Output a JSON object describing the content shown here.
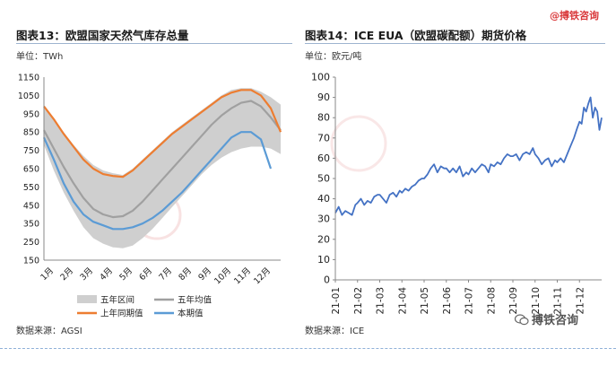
{
  "header": {
    "brand": "@搏铁咨询"
  },
  "footer": {
    "brand": "搏铁咨询"
  },
  "colors": {
    "band": "#cfcfcf",
    "avg": "#a0a0a0",
    "last_year": "#ed7d31",
    "this_year": "#5b9bd5",
    "eua": "#4472c4",
    "accent_red": "#d9383a"
  },
  "icons": {
    "wechat": "wechat-icon",
    "watermark": "boshi-logo-icon"
  },
  "chart_data": [
    {
      "type": "area",
      "title": "图表13：欧盟国家天然气库存总量",
      "unit_label": "单位：TWh",
      "source": "数据来源：AGSI",
      "ylim": [
        150,
        1150
      ],
      "yticks": [
        150,
        250,
        350,
        450,
        550,
        650,
        750,
        850,
        950,
        1050,
        1150
      ],
      "xlim": [
        0,
        12
      ],
      "categories": [
        "1月",
        "2月",
        "3月",
        "4月",
        "5月",
        "6月",
        "7月",
        "8月",
        "9月",
        "10月",
        "11月",
        "12月"
      ],
      "legend": {
        "band": "五年区间",
        "avg": "五年均值",
        "last_year": "上年同期值",
        "this_year": "本期值"
      },
      "grid": false,
      "band": {
        "x": [
          0,
          0.5,
          1,
          1.5,
          2,
          2.5,
          3,
          3.5,
          4,
          4.5,
          5,
          5.5,
          6,
          6.5,
          7,
          7.5,
          8,
          8.5,
          9,
          9.5,
          10,
          10.5,
          11,
          11.5,
          12
        ],
        "upper": [
          980,
          920,
          850,
          780,
          720,
          670,
          640,
          625,
          615,
          650,
          700,
          750,
          800,
          850,
          890,
          930,
          970,
          1010,
          1050,
          1080,
          1090,
          1090,
          1070,
          1040,
          1000
        ],
        "lower": [
          780,
          640,
          520,
          420,
          330,
          270,
          240,
          220,
          215,
          230,
          270,
          320,
          380,
          440,
          500,
          560,
          620,
          670,
          710,
          740,
          760,
          770,
          770,
          760,
          730
        ]
      },
      "series": [
        {
          "key": "avg",
          "x": [
            0,
            0.5,
            1,
            1.5,
            2,
            2.5,
            3,
            3.5,
            4,
            4.5,
            5,
            5.5,
            6,
            6.5,
            7,
            7.5,
            8,
            8.5,
            9,
            9.5,
            10,
            10.5,
            11,
            11.5,
            12
          ],
          "values": [
            860,
            760,
            660,
            570,
            490,
            430,
            400,
            385,
            390,
            420,
            470,
            530,
            590,
            650,
            710,
            770,
            830,
            890,
            940,
            980,
            1010,
            1020,
            990,
            930,
            860
          ]
        },
        {
          "key": "last_year",
          "x": [
            0,
            0.5,
            1,
            1.5,
            2,
            2.5,
            3,
            3.5,
            4,
            4.5,
            5,
            5.5,
            6,
            6.5,
            7,
            7.5,
            8,
            8.5,
            9,
            9.5,
            10,
            10.5,
            11,
            11.5,
            12
          ],
          "values": [
            990,
            920,
            840,
            770,
            700,
            650,
            620,
            610,
            605,
            640,
            690,
            740,
            790,
            840,
            880,
            920,
            960,
            1000,
            1040,
            1065,
            1080,
            1080,
            1050,
            980,
            850
          ]
        },
        {
          "key": "this_year",
          "x": [
            0,
            0.5,
            1,
            1.5,
            2,
            2.5,
            3,
            3.5,
            4,
            4.5,
            5,
            5.5,
            6,
            6.5,
            7,
            7.5,
            8,
            8.5,
            9,
            9.5,
            10,
            10.5,
            11,
            11.5
          ],
          "values": [
            820,
            700,
            570,
            470,
            400,
            360,
            340,
            320,
            320,
            330,
            350,
            380,
            420,
            470,
            520,
            580,
            640,
            700,
            760,
            820,
            850,
            850,
            810,
            650
          ]
        }
      ]
    },
    {
      "type": "line",
      "title": "图表14：ICE EUA（欧盟碳配额）期货价格",
      "unit_label": "单位：欧元/吨",
      "source": "数据来源：ICE",
      "ylim": [
        0,
        100
      ],
      "yticks": [
        0,
        10,
        20,
        30,
        40,
        50,
        60,
        70,
        80,
        90,
        100
      ],
      "xlim": [
        0,
        12
      ],
      "categories": [
        "21-01",
        "21-02",
        "21-03",
        "21-04",
        "21-05",
        "21-06",
        "21-07",
        "21-08",
        "21-09",
        "21-10",
        "21-11",
        "21-12"
      ],
      "grid": false,
      "series": [
        {
          "key": "eua",
          "x": [
            0,
            0.15,
            0.3,
            0.45,
            0.6,
            0.75,
            0.9,
            1.0,
            1.15,
            1.3,
            1.45,
            1.6,
            1.75,
            1.9,
            2.0,
            2.15,
            2.3,
            2.45,
            2.6,
            2.75,
            2.9,
            3.0,
            3.15,
            3.3,
            3.45,
            3.6,
            3.75,
            3.9,
            4.0,
            4.15,
            4.3,
            4.45,
            4.6,
            4.75,
            4.9,
            5.0,
            5.15,
            5.3,
            5.45,
            5.6,
            5.75,
            5.9,
            6.0,
            6.15,
            6.3,
            6.45,
            6.6,
            6.75,
            6.9,
            7.0,
            7.15,
            7.3,
            7.45,
            7.6,
            7.75,
            7.9,
            8.0,
            8.15,
            8.3,
            8.45,
            8.6,
            8.75,
            8.9,
            9.0,
            9.15,
            9.3,
            9.45,
            9.6,
            9.75,
            9.9,
            10.0,
            10.15,
            10.3,
            10.45,
            10.6,
            10.75,
            10.9,
            11.0,
            11.1,
            11.2,
            11.3,
            11.4,
            11.5,
            11.6,
            11.7,
            11.8,
            11.9,
            12.0
          ],
          "values": [
            33,
            36,
            32,
            34,
            33,
            32,
            37,
            38,
            40,
            37,
            39,
            38,
            41,
            42,
            42,
            40,
            38,
            42,
            43,
            41,
            44,
            43,
            45,
            44,
            46,
            47,
            49,
            50,
            50,
            52,
            55,
            57,
            53,
            56,
            55,
            55,
            53,
            55,
            53,
            56,
            51,
            53,
            52,
            55,
            53,
            55,
            57,
            56,
            53,
            57,
            56,
            58,
            57,
            60,
            62,
            61,
            61,
            62,
            59,
            62,
            63,
            62,
            65,
            62,
            60,
            57,
            59,
            60,
            56,
            59,
            58,
            60,
            58,
            62,
            66,
            70,
            75,
            78,
            77,
            85,
            83,
            87,
            90,
            80,
            85,
            83,
            74,
            80
          ]
        }
      ]
    }
  ]
}
